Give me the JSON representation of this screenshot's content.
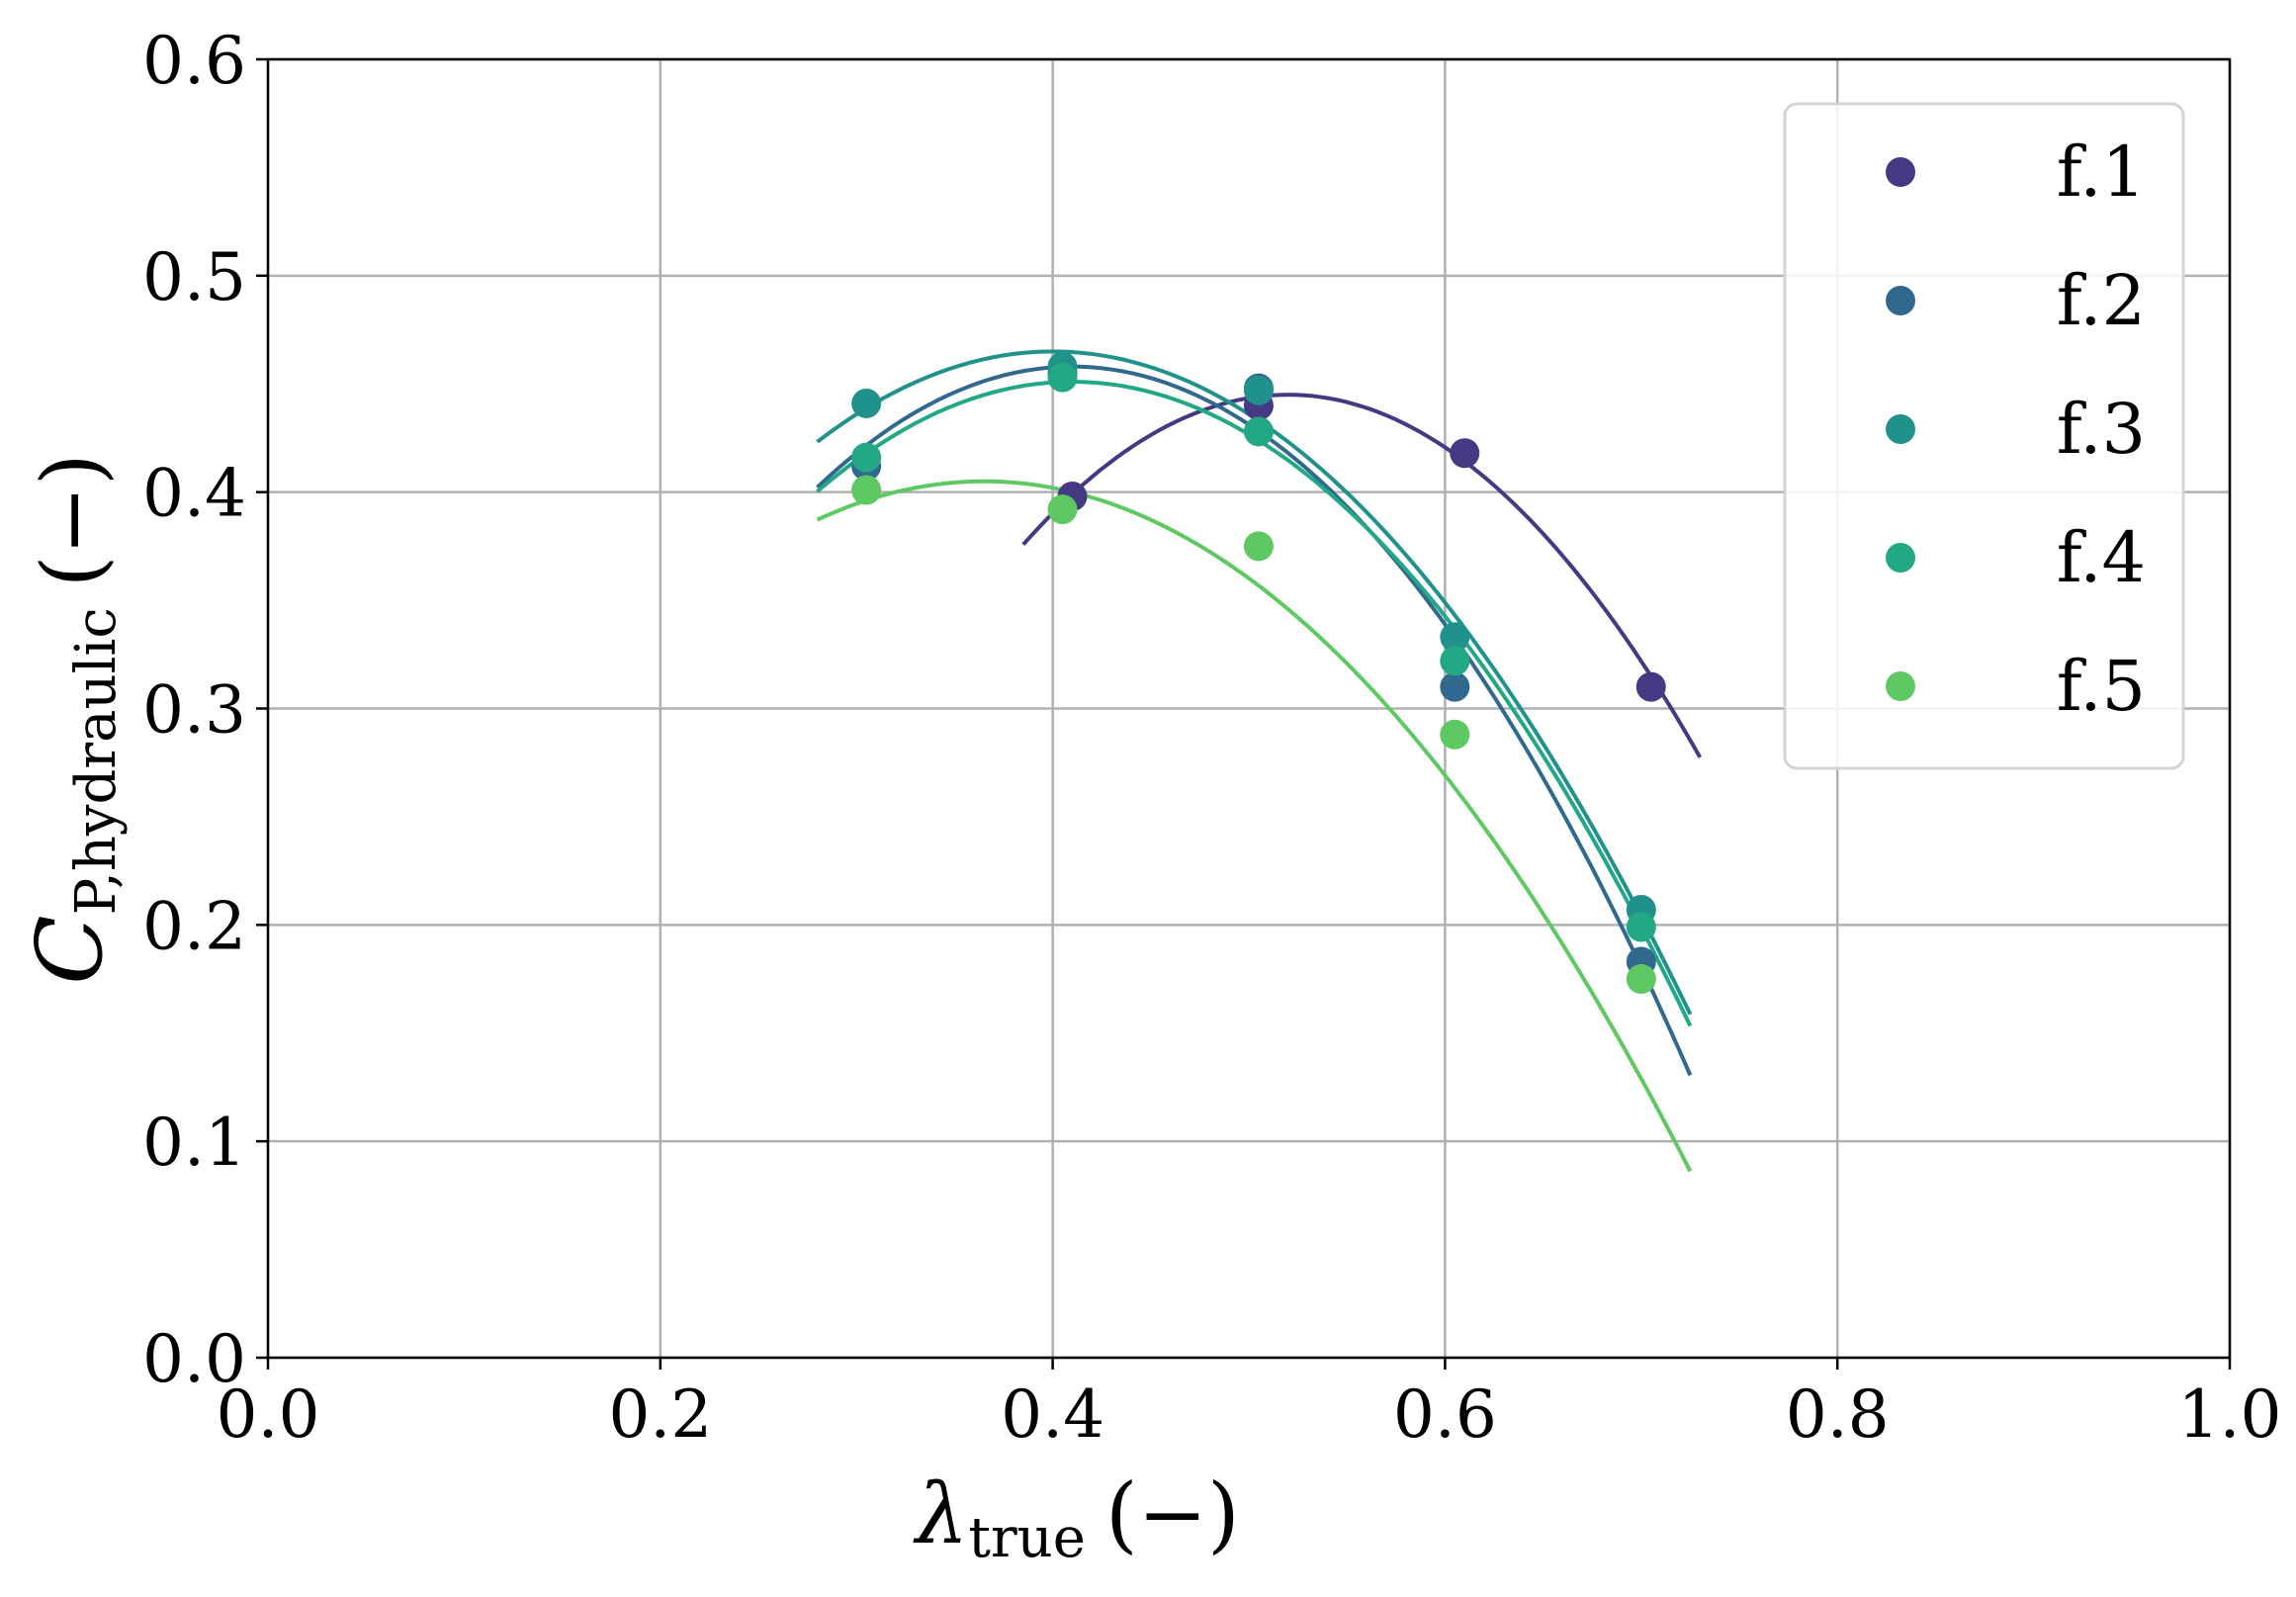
{
  "chart_data": {
    "type": "scatter",
    "xlabel": {
      "main": "λ",
      "sub": "true",
      "unit": "(−)"
    },
    "ylabel": {
      "main": "C",
      "sub": "P,hydraulic",
      "unit": "(−)"
    },
    "xlim": [
      0.0,
      1.0
    ],
    "ylim": [
      0.0,
      0.6
    ],
    "xticks": [
      0.0,
      0.2,
      0.4,
      0.6,
      0.8,
      1.0
    ],
    "yticks": [
      0.0,
      0.1,
      0.2,
      0.3,
      0.4,
      0.5,
      0.6
    ],
    "xtick_labels": [
      "0.0",
      "0.2",
      "0.4",
      "0.6",
      "0.8",
      "1.0"
    ],
    "ytick_labels": [
      "0.0",
      "0.1",
      "0.2",
      "0.3",
      "0.4",
      "0.5",
      "0.6"
    ],
    "grid": true,
    "legend_position": "top-right",
    "series": [
      {
        "name": "f.1",
        "color": "#443983",
        "points": {
          "x": [
            0.41,
            0.505,
            0.61,
            0.705
          ],
          "y": [
            0.398,
            0.44,
            0.418,
            0.31
          ]
        },
        "fit": {
          "x_range": [
            0.385,
            0.73
          ],
          "x_at_max": 0.52,
          "y_max": 0.445,
          "curvature": 3.8
        }
      },
      {
        "name": "f.2",
        "color": "#31688e",
        "points": {
          "x": [
            0.305,
            0.405,
            0.505,
            0.605,
            0.7
          ],
          "y": [
            0.412,
            0.455,
            0.448,
            0.31,
            0.183
          ]
        },
        "fit": {
          "x_range": [
            0.28,
            0.725
          ],
          "x_at_max": 0.41,
          "y_max": 0.458,
          "curvature": 3.3
        }
      },
      {
        "name": "f.3",
        "color": "#21918c",
        "points": {
          "x": [
            0.305,
            0.405,
            0.505,
            0.605,
            0.7
          ],
          "y": [
            0.441,
            0.458,
            0.447,
            0.333,
            0.207
          ]
        },
        "fit": {
          "x_range": [
            0.28,
            0.725
          ],
          "x_at_max": 0.4,
          "y_max": 0.465,
          "curvature": 2.9
        }
      },
      {
        "name": "f.4",
        "color": "#22a884",
        "points": {
          "x": [
            0.305,
            0.405,
            0.505,
            0.605,
            0.7
          ],
          "y": [
            0.416,
            0.453,
            0.428,
            0.322,
            0.199
          ]
        },
        "fit": {
          "x_range": [
            0.28,
            0.725
          ],
          "x_at_max": 0.41,
          "y_max": 0.451,
          "curvature": 3.0
        }
      },
      {
        "name": "f.5",
        "color": "#5ec962",
        "points": {
          "x": [
            0.305,
            0.405,
            0.505,
            0.605,
            0.7
          ],
          "y": [
            0.401,
            0.392,
            0.375,
            0.288,
            0.175
          ]
        },
        "fit": {
          "x_range": [
            0.28,
            0.725
          ],
          "x_at_max": 0.365,
          "y_max": 0.405,
          "curvature": 2.46
        }
      }
    ]
  }
}
